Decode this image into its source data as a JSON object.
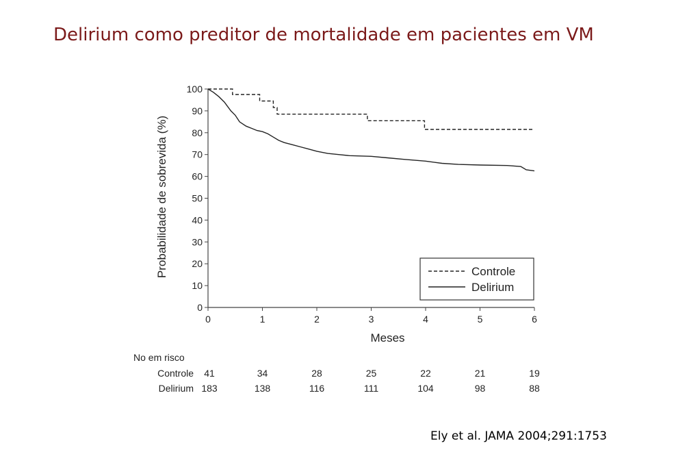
{
  "slide": {
    "title": "Delirium como preditor de mortalidade em pacientes em VM",
    "citation": "Ely et al. JAMA 2004;291:1753"
  },
  "chart_data": {
    "type": "line",
    "xlabel": "Meses",
    "ylabel": "Probabilidade de sobrevida (%)",
    "xlim": [
      0,
      6
    ],
    "ylim": [
      0,
      100
    ],
    "x_ticks": [
      "0",
      "1",
      "2",
      "3",
      "4",
      "5",
      "6"
    ],
    "y_ticks": [
      "0",
      "10",
      "20",
      "30",
      "40",
      "50",
      "60",
      "70",
      "80",
      "90",
      "100"
    ],
    "grid": false,
    "legend_position": "bottom-right",
    "series": [
      {
        "name": "Controle",
        "style": "dashed",
        "points": [
          [
            0,
            100
          ],
          [
            0.45,
            100
          ],
          [
            0.45,
            97.5
          ],
          [
            0.95,
            97.5
          ],
          [
            0.95,
            94.5
          ],
          [
            1.2,
            94.5
          ],
          [
            1.2,
            91.5
          ],
          [
            1.27,
            91.5
          ],
          [
            1.27,
            88.5
          ],
          [
            2.93,
            88.5
          ],
          [
            2.93,
            85.5
          ],
          [
            3.98,
            85.5
          ],
          [
            3.98,
            81.5
          ],
          [
            6,
            81.5
          ]
        ]
      },
      {
        "name": "Delirium",
        "style": "solid",
        "points": [
          [
            0,
            100
          ],
          [
            0.1,
            98.5
          ],
          [
            0.2,
            96.5
          ],
          [
            0.3,
            94
          ],
          [
            0.42,
            90
          ],
          [
            0.5,
            88
          ],
          [
            0.58,
            85
          ],
          [
            0.7,
            83
          ],
          [
            0.8,
            82
          ],
          [
            0.9,
            81
          ],
          [
            1.0,
            80.5
          ],
          [
            1.1,
            79.5
          ],
          [
            1.2,
            78
          ],
          [
            1.3,
            76.5
          ],
          [
            1.4,
            75.5
          ],
          [
            1.55,
            74.5
          ],
          [
            1.7,
            73.5
          ],
          [
            1.85,
            72.5
          ],
          [
            2.0,
            71.5
          ],
          [
            2.2,
            70.5
          ],
          [
            2.4,
            70
          ],
          [
            2.6,
            69.5
          ],
          [
            3.0,
            69.2
          ],
          [
            3.3,
            68.5
          ],
          [
            3.6,
            67.8
          ],
          [
            4.0,
            67
          ],
          [
            4.3,
            66
          ],
          [
            4.6,
            65.5
          ],
          [
            5.0,
            65.2
          ],
          [
            5.5,
            65
          ],
          [
            5.75,
            64.5
          ],
          [
            5.85,
            63
          ],
          [
            6,
            62.5
          ]
        ]
      }
    ],
    "risk_table": {
      "title": "No em risco",
      "rows": [
        {
          "label": "Controle",
          "values": [
            "41",
            "34",
            "28",
            "25",
            "22",
            "21",
            "19"
          ]
        },
        {
          "label": "Delirium",
          "values": [
            "183",
            "138",
            "116",
            "111",
            "104",
            "98",
            "88"
          ]
        }
      ]
    }
  }
}
